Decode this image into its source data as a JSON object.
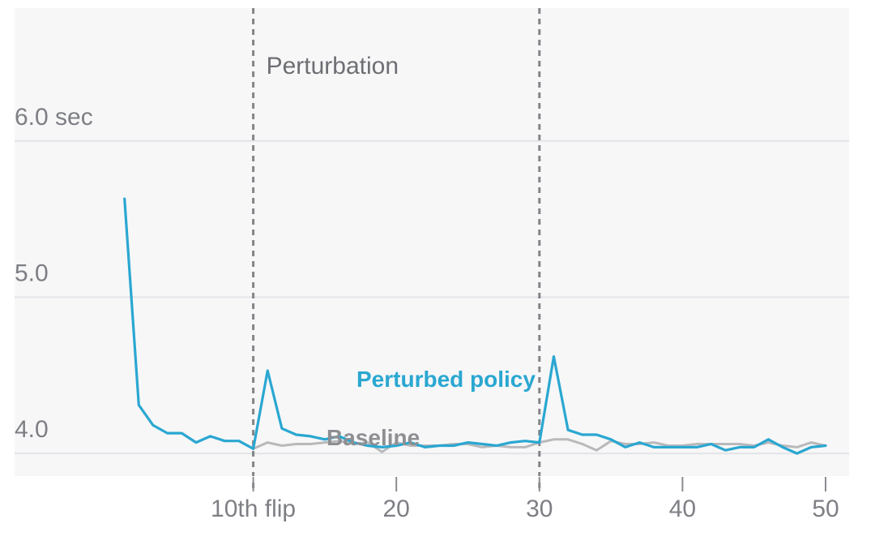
{
  "chart_data": {
    "type": "line",
    "title": "",
    "xlabel": "",
    "ylabel": "",
    "y_unit": "sec",
    "xlim": [
      0,
      50
    ],
    "ylim": [
      3.85,
      6.85
    ],
    "grid": true,
    "y_ticks": [
      {
        "value": 4.0,
        "label": "4.0"
      },
      {
        "value": 5.0,
        "label": "5.0"
      },
      {
        "value": 6.0,
        "label": "6.0 sec"
      }
    ],
    "x_ticks": [
      {
        "value": 10,
        "label": "10th flip"
      },
      {
        "value": 20,
        "label": "20"
      },
      {
        "value": 30,
        "label": "30"
      },
      {
        "value": 40,
        "label": "40"
      },
      {
        "value": 50,
        "label": "50"
      }
    ],
    "annotations": [
      {
        "text": "Perturbation"
      }
    ],
    "perturbations": [
      10,
      30
    ],
    "series": [
      {
        "name": "Perturbed policy",
        "color": "#2aa7d1",
        "x": [
          1,
          2,
          3,
          4,
          5,
          6,
          7,
          8,
          9,
          10,
          11,
          12,
          13,
          14,
          15,
          16,
          17,
          18,
          19,
          20,
          21,
          22,
          23,
          24,
          25,
          26,
          27,
          28,
          29,
          30,
          31,
          32,
          33,
          34,
          35,
          36,
          37,
          38,
          39,
          40,
          41,
          42,
          43,
          44,
          45,
          46,
          47,
          48,
          49,
          50
        ],
        "values": [
          5.63,
          4.31,
          4.18,
          4.13,
          4.13,
          4.07,
          4.11,
          4.08,
          4.08,
          4.03,
          4.53,
          4.16,
          4.12,
          4.11,
          4.09,
          4.11,
          4.07,
          4.05,
          4.04,
          4.05,
          4.07,
          4.04,
          4.05,
          4.05,
          4.07,
          4.06,
          4.05,
          4.07,
          4.08,
          4.07,
          4.62,
          4.15,
          4.12,
          4.12,
          4.09,
          4.04,
          4.07,
          4.04,
          4.04,
          4.04,
          4.04,
          4.06,
          4.02,
          4.04,
          4.04,
          4.09,
          4.04,
          4.0,
          4.04,
          4.05
        ]
      },
      {
        "name": "Baseline",
        "color": "#b9b9bc",
        "x": [
          10,
          11,
          12,
          13,
          14,
          15,
          16,
          17,
          18,
          19,
          20,
          21,
          22,
          23,
          24,
          25,
          26,
          27,
          28,
          29,
          30,
          31,
          32,
          33,
          34,
          35,
          36,
          37,
          38,
          39,
          40,
          41,
          42,
          43,
          44,
          45,
          46,
          47,
          48,
          49,
          50
        ],
        "values": [
          4.03,
          4.07,
          4.05,
          4.06,
          4.06,
          4.07,
          4.08,
          4.06,
          4.07,
          4.01,
          4.07,
          4.05,
          4.05,
          4.05,
          4.06,
          4.06,
          4.04,
          4.05,
          4.04,
          4.04,
          4.07,
          4.09,
          4.09,
          4.06,
          4.02,
          4.08,
          4.06,
          4.06,
          4.07,
          4.05,
          4.05,
          4.06,
          4.06,
          4.06,
          4.06,
          4.05,
          4.07,
          4.05,
          4.04,
          4.07,
          4.05
        ]
      }
    ]
  }
}
